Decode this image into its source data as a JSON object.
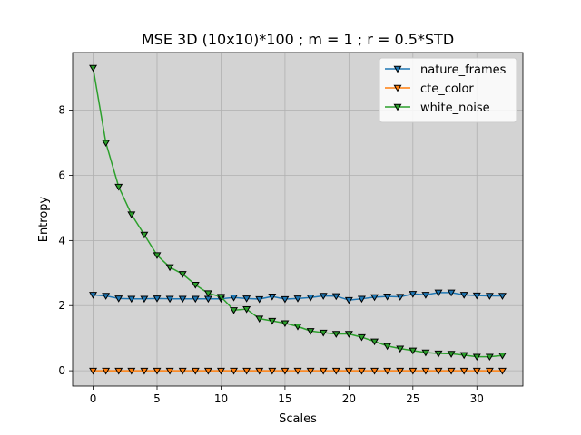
{
  "chart_data": {
    "type": "line",
    "title": "MSE 3D (10x10)*100 ; m = 1 ; r = 0.5*STD",
    "xlabel": "Scales",
    "ylabel": "Entropy",
    "xlim": [
      -1.6,
      33.6
    ],
    "ylim": [
      -0.47,
      9.77
    ],
    "xticks": [
      0,
      5,
      10,
      15,
      20,
      25,
      30
    ],
    "yticks": [
      0,
      2,
      4,
      6,
      8
    ],
    "grid": true,
    "legend_position": "top-right",
    "marker": "triangle-down",
    "background": "#d3d3d3",
    "x": [
      0,
      1,
      2,
      3,
      4,
      5,
      6,
      7,
      8,
      9,
      10,
      11,
      12,
      13,
      14,
      15,
      16,
      17,
      18,
      19,
      20,
      21,
      22,
      23,
      24,
      25,
      26,
      27,
      28,
      29,
      30,
      31,
      32
    ],
    "series": [
      {
        "name": "nature_frames",
        "color": "#1f77b4",
        "values": [
          2.33,
          2.3,
          2.22,
          2.21,
          2.21,
          2.22,
          2.21,
          2.21,
          2.21,
          2.21,
          2.21,
          2.25,
          2.22,
          2.2,
          2.28,
          2.2,
          2.22,
          2.25,
          2.3,
          2.29,
          2.17,
          2.21,
          2.26,
          2.28,
          2.27,
          2.36,
          2.33,
          2.4,
          2.4,
          2.33,
          2.31,
          2.3,
          2.3
        ]
      },
      {
        "name": "cte_color",
        "color": "#ff7f0e",
        "values": [
          0,
          0,
          0,
          0,
          0,
          0,
          0,
          0,
          0,
          0,
          0,
          0,
          0,
          0,
          0,
          0,
          0,
          0,
          0,
          0,
          0,
          0,
          0,
          0,
          0,
          0,
          0,
          0,
          0,
          0,
          0,
          0,
          0
        ]
      },
      {
        "name": "white_noise",
        "color": "#2ca02c",
        "values": [
          9.3,
          7.0,
          5.65,
          4.8,
          4.18,
          3.55,
          3.18,
          2.97,
          2.64,
          2.38,
          2.27,
          1.86,
          1.89,
          1.6,
          1.53,
          1.46,
          1.36,
          1.22,
          1.17,
          1.13,
          1.13,
          1.03,
          0.9,
          0.76,
          0.68,
          0.62,
          0.56,
          0.53,
          0.52,
          0.48,
          0.43,
          0.43,
          0.47
        ]
      }
    ]
  }
}
